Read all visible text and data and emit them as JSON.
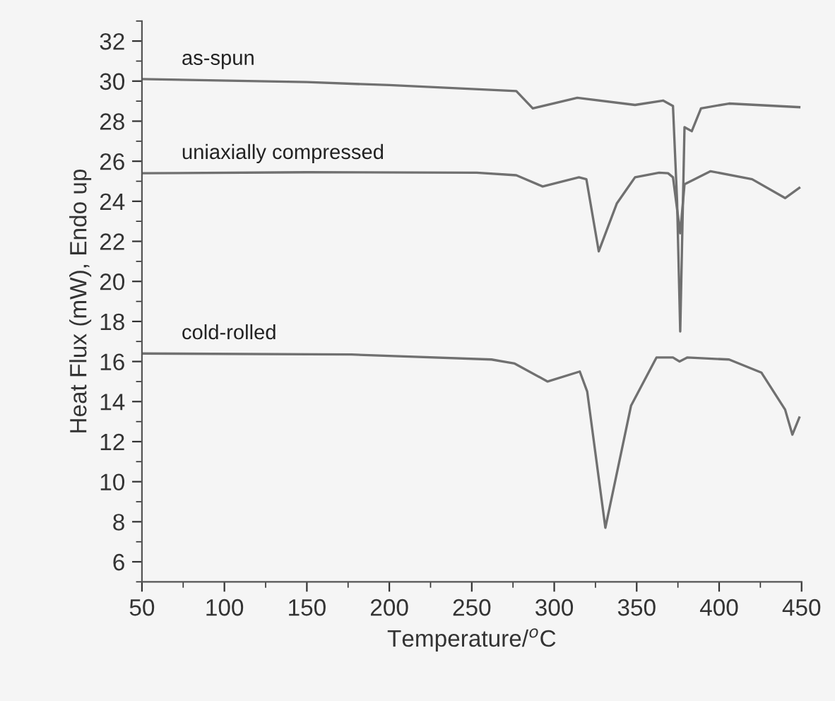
{
  "chart_data": {
    "type": "line",
    "xlabel": "Temperature/$^{o}$C",
    "ylabel": "Heat Flux (mW), Endo up",
    "xlim": [
      50,
      450
    ],
    "xticks": [
      50,
      100,
      150,
      200,
      250,
      300,
      350,
      400,
      450
    ],
    "ylim": [
      5,
      33
    ],
    "yticks": [
      6,
      8,
      10,
      12,
      14,
      16,
      18,
      20,
      22,
      24,
      26,
      28,
      30,
      32
    ],
    "grid": false,
    "legend": false,
    "marker": "none",
    "line_style": "solid",
    "series": [
      {
        "name": "as-spun",
        "color": "#707070",
        "x": [
          50,
          150,
          200,
          277,
          287,
          314,
          349,
          366,
          372,
          374.5,
          376.4,
          379,
          383.4,
          389,
          406,
          448.6
        ],
        "values": [
          30.1,
          29.95,
          29.8,
          29.5,
          28.64,
          29.17,
          28.81,
          29.03,
          28.76,
          24,
          17.5,
          27.7,
          27.5,
          28.64,
          28.88,
          28.7
        ]
      },
      {
        "name": "uniaxially compressed",
        "color": "#707070",
        "x": [
          50,
          150,
          253,
          277,
          293,
          315,
          319.5,
          327,
          338,
          349,
          363.6,
          369,
          372,
          376.4,
          379,
          394.8,
          420,
          440,
          448.6
        ],
        "values": [
          25.4,
          25.45,
          25.43,
          25.3,
          24.74,
          25.2,
          25.1,
          21.5,
          23.9,
          25.2,
          25.43,
          25.4,
          25.2,
          22.4,
          24.85,
          25.5,
          25.1,
          24.16,
          24.67
        ]
      },
      {
        "name": "cold-rolled",
        "color": "#707070",
        "x": [
          50,
          177,
          262,
          276,
          296,
          315.5,
          320,
          331,
          346.6,
          362,
          372,
          376,
          380.6,
          406,
          425.6,
          440,
          444.4,
          448.6
        ],
        "values": [
          16.4,
          16.35,
          16.1,
          15.9,
          15.0,
          15.5,
          14.5,
          7.7,
          13.8,
          16.2,
          16.2,
          16.0,
          16.2,
          16.1,
          15.45,
          13.6,
          12.35,
          13.2
        ]
      }
    ]
  }
}
